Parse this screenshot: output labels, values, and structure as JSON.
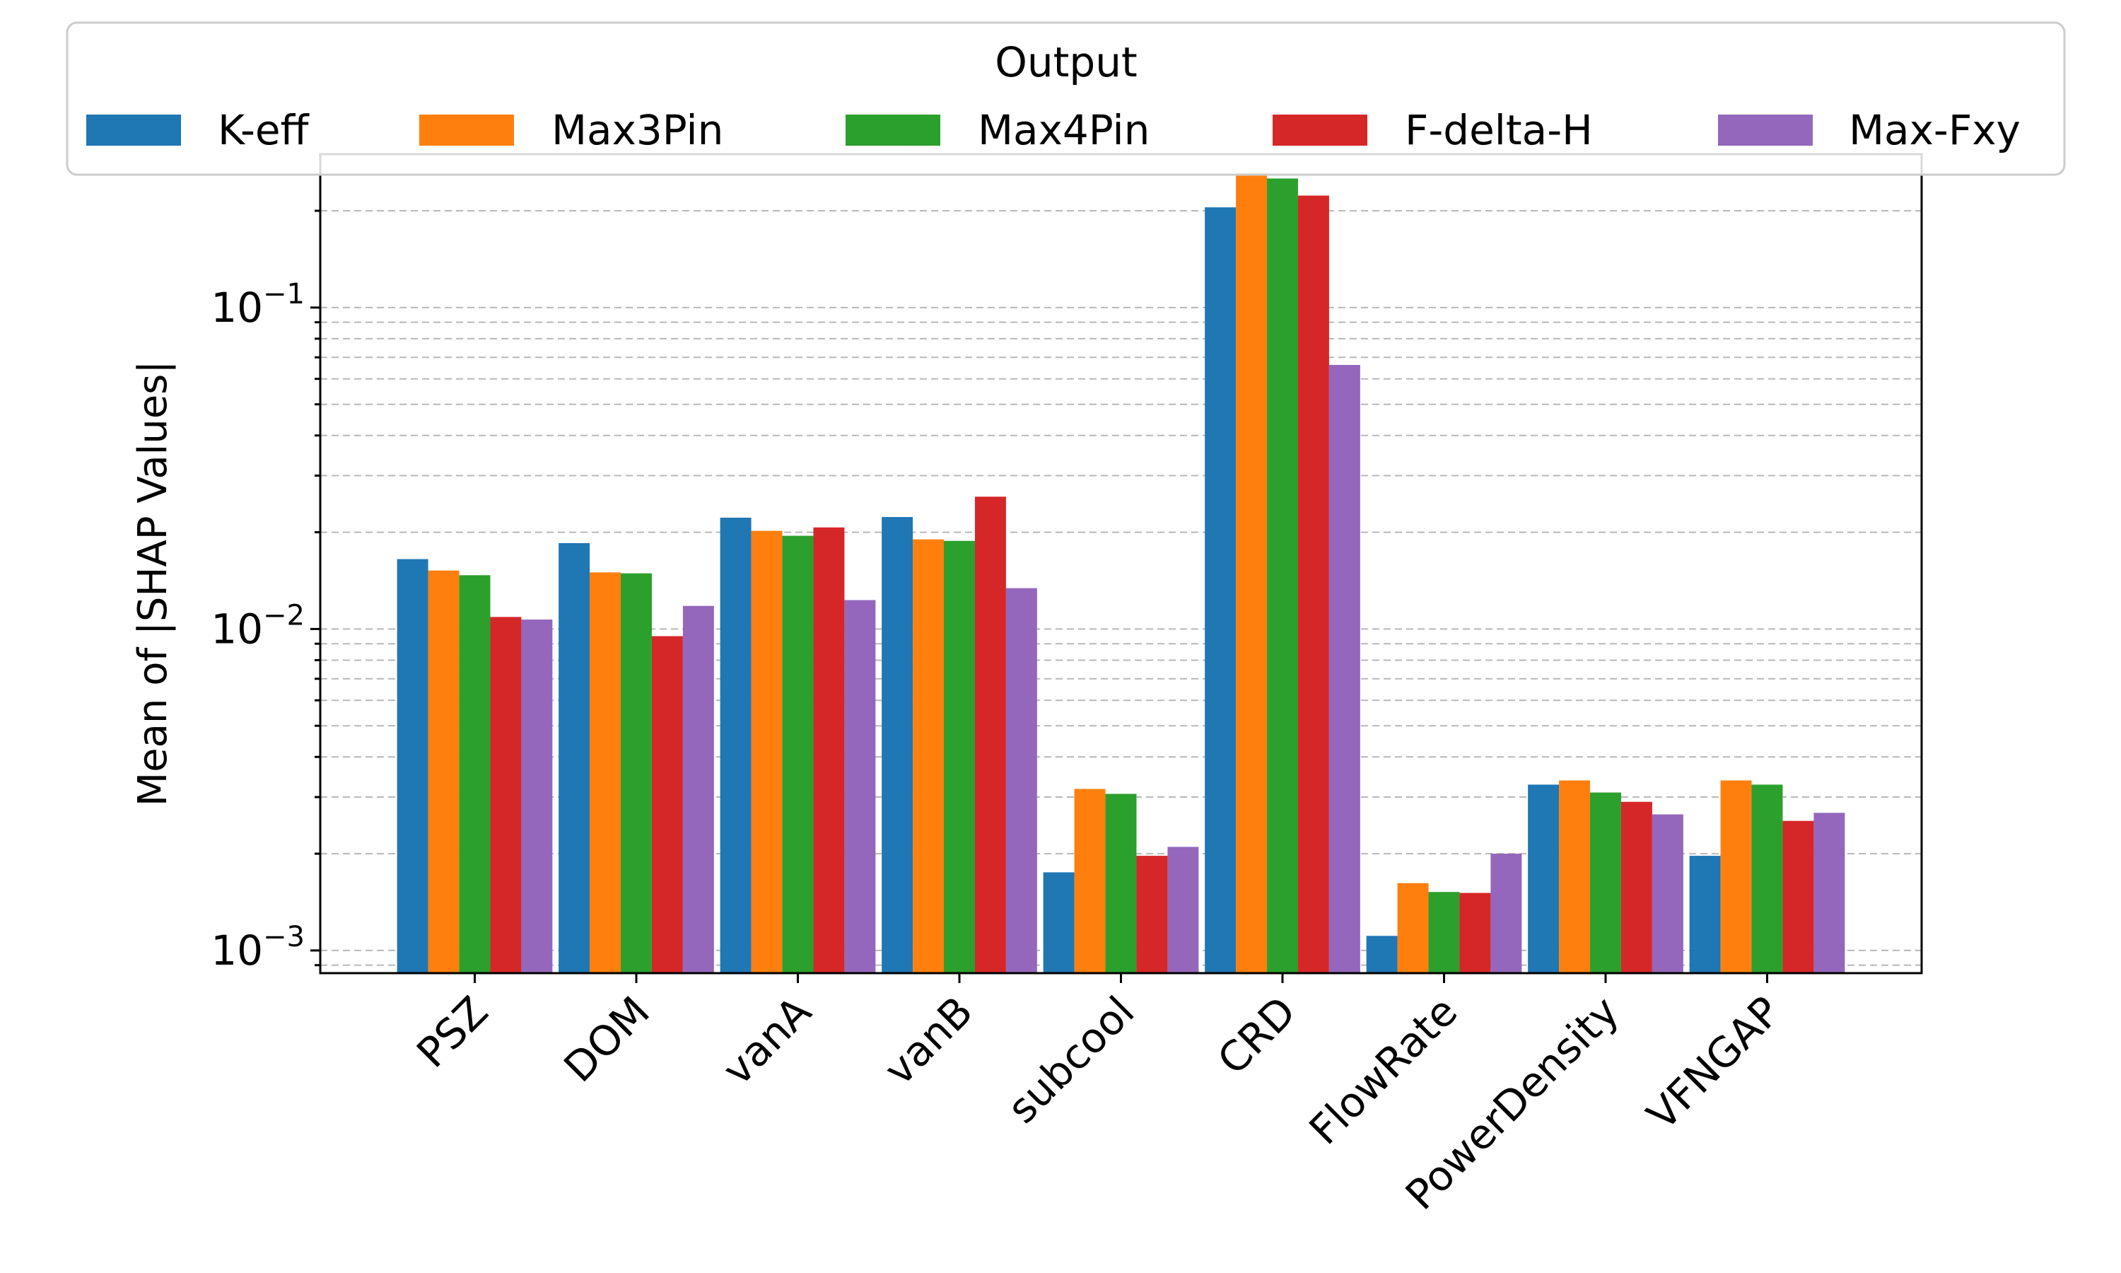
{
  "chart_data": {
    "type": "bar",
    "scale": "log",
    "title": "",
    "xlabel": "",
    "ylabel": "Mean of |SHAP Values|",
    "ylim": [
      0.00085,
      0.3
    ],
    "yticks": [
      {
        "value": 0.001,
        "base": "10",
        "exp": "−3"
      },
      {
        "value": 0.01,
        "base": "10",
        "exp": "−2"
      },
      {
        "value": 0.1,
        "base": "10",
        "exp": "−1"
      }
    ],
    "grid": "horizontal-dashed",
    "legend": {
      "title": "Output",
      "placement": "top"
    },
    "categories": [
      "PSZ",
      "DOM",
      "vanA",
      "vanB",
      "subcool",
      "CRD",
      "FlowRate",
      "PowerDensity",
      "VFNGAP"
    ],
    "series": [
      {
        "name": "K-eff",
        "color": "#1f77b4",
        "values": [
          0.0165,
          0.0185,
          0.0222,
          0.0223,
          0.00175,
          0.205,
          0.00111,
          0.00328,
          0.00197
        ]
      },
      {
        "name": "Max3Pin",
        "color": "#ff7f0e",
        "values": [
          0.0152,
          0.015,
          0.0202,
          0.019,
          0.00318,
          0.262,
          0.00162,
          0.00338,
          0.00338
        ]
      },
      {
        "name": "Max4Pin",
        "color": "#2ca02c",
        "values": [
          0.0147,
          0.0149,
          0.0195,
          0.0188,
          0.00307,
          0.252,
          0.00152,
          0.0031,
          0.00328
        ]
      },
      {
        "name": "F-delta-H",
        "color": "#d62728",
        "values": [
          0.0109,
          0.0095,
          0.0207,
          0.0258,
          0.00197,
          0.223,
          0.00151,
          0.0029,
          0.00253
        ]
      },
      {
        "name": "Max-Fxy",
        "color": "#9467bd",
        "values": [
          0.0107,
          0.0118,
          0.0123,
          0.0134,
          0.0021,
          0.0663,
          0.002,
          0.00265,
          0.00268
        ]
      }
    ]
  }
}
